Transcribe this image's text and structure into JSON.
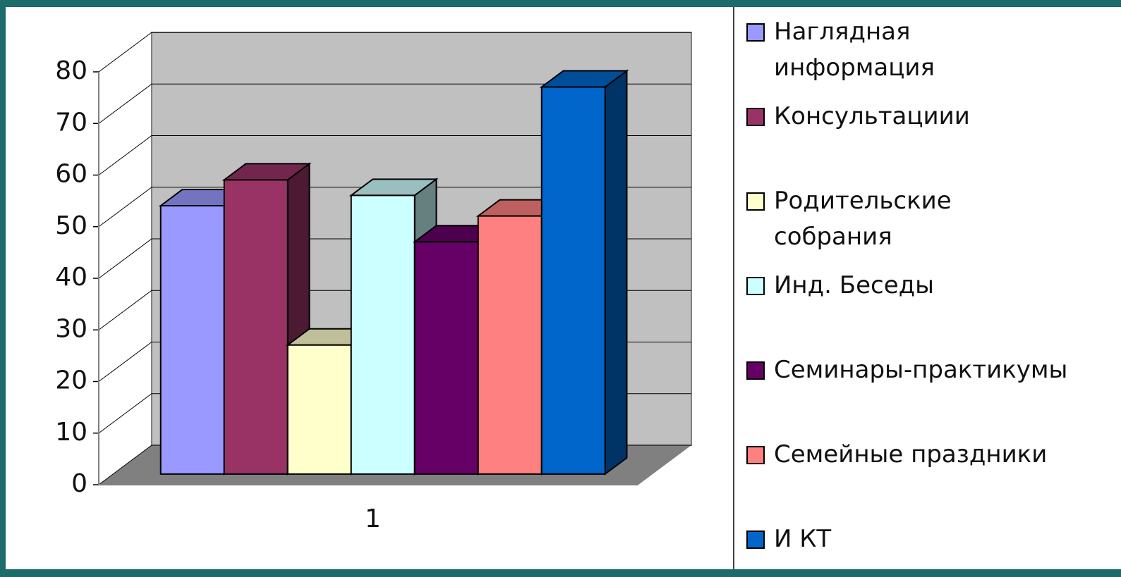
{
  "chart_data": {
    "type": "bar3d",
    "categories": [
      "1"
    ],
    "series": [
      {
        "name": "Наглядная информация",
        "color": "#9999ff",
        "values": [
          52
        ]
      },
      {
        "name": "Консультациии",
        "color": "#993366",
        "values": [
          57
        ]
      },
      {
        "name": "Родительские собрания",
        "color": "#ffffcc",
        "values": [
          25
        ]
      },
      {
        "name": "Инд. Беседы",
        "color": "#ccffff",
        "values": [
          54
        ]
      },
      {
        "name": "Семинары-практикумы",
        "color": "#660066",
        "values": [
          45
        ]
      },
      {
        "name": "Семейные праздники",
        "color": "#ff8080",
        "values": [
          50
        ]
      },
      {
        "name": "И КТ",
        "color": "#0066cc",
        "values": [
          75
        ]
      }
    ],
    "ylim": [
      0,
      80
    ],
    "yticks": [
      0,
      10,
      20,
      30,
      40,
      50,
      60,
      70,
      80
    ],
    "grid": true
  }
}
